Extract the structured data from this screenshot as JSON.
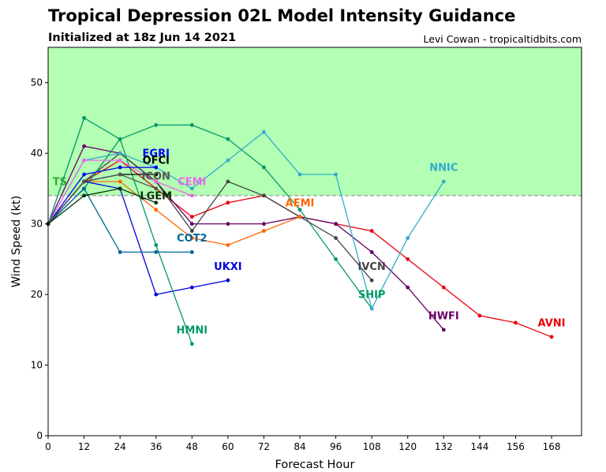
{
  "header": {
    "title": "Tropical Depression 02L Model Intensity Guidance",
    "subtitle": "Initialized at 18z Jun 14 2021",
    "credit": "Levi Cowan - tropicaltidbits.com"
  },
  "chart_data": {
    "type": "line",
    "title": "Tropical Depression 02L Model Intensity Guidance",
    "subtitle": "Initialized at 18z Jun 14 2021",
    "xlabel": "Forecast Hour",
    "ylabel": "Wind Speed (kt)",
    "xlim": [
      0,
      178
    ],
    "ylim": [
      0,
      55
    ],
    "xticks": [
      0,
      12,
      24,
      36,
      48,
      60,
      72,
      84,
      96,
      108,
      120,
      132,
      144,
      156,
      168
    ],
    "yticks": [
      0,
      10,
      20,
      30,
      40,
      50
    ],
    "grid": false,
    "legend": "none",
    "ts_region": {
      "label": "TS",
      "from": 34,
      "to": 55,
      "color": "#b3ffb3",
      "label_color": "#33aa33"
    },
    "threshold_line": 34,
    "series": [
      {
        "name": "AVNI",
        "color": "#e8000b",
        "x": [
          0,
          12,
          24,
          36,
          48,
          60,
          72,
          84,
          96,
          108,
          120,
          132,
          144,
          156,
          168
        ],
        "y": [
          30,
          36,
          39,
          35,
          31,
          33,
          34,
          31,
          30,
          29,
          25,
          21,
          17,
          16,
          14
        ],
        "label_x": 168,
        "label_y": 15.5
      },
      {
        "name": "HWFI",
        "color": "#660066",
        "x": [
          0,
          12,
          24,
          36,
          48,
          60,
          72,
          84,
          96,
          108,
          120,
          132
        ],
        "y": [
          30,
          41,
          40,
          36,
          30,
          30,
          30,
          31,
          30,
          26,
          21,
          15
        ],
        "label_x": 132,
        "label_y": 16.5
      },
      {
        "name": "SHIP",
        "color": "#009966",
        "x": [
          0,
          12,
          24,
          36,
          48,
          60,
          72,
          84,
          96,
          108
        ],
        "y": [
          30,
          45,
          42,
          44,
          44,
          42,
          38,
          32,
          25,
          18
        ],
        "label_x": 108,
        "label_y": 19.5
      },
      {
        "name": "IVCN",
        "color": "#444444",
        "x": [
          0,
          12,
          24,
          36,
          48,
          60,
          72,
          84,
          96,
          108
        ],
        "y": [
          30,
          36,
          40,
          36,
          29,
          36,
          34,
          31,
          28,
          22
        ],
        "label_x": 108,
        "label_y": 23.5
      },
      {
        "name": "NNIC",
        "color": "#33aacc",
        "x": [
          0,
          12,
          24,
          36,
          48,
          60,
          72,
          84,
          96,
          108,
          120,
          132
        ],
        "y": [
          30,
          39,
          40,
          38,
          35,
          39,
          43,
          37,
          37,
          18,
          28,
          36
        ],
        "label_x": 132,
        "label_y": 37.5
      },
      {
        "name": "AEMI",
        "color": "#ff6600",
        "x": [
          0,
          12,
          24,
          36,
          48,
          60,
          72,
          84
        ],
        "y": [
          30,
          36,
          36,
          32,
          28,
          27,
          29,
          31
        ],
        "label_x": 84,
        "label_y": 32.5
      },
      {
        "name": "UKXI",
        "color": "#0000dd",
        "x": [
          0,
          12,
          24,
          36,
          48,
          60
        ],
        "y": [
          30,
          36,
          35,
          20,
          21,
          22
        ],
        "label_x": 60,
        "label_y": 23.5
      },
      {
        "name": "HMNI",
        "color": "#009966",
        "x": [
          0,
          12,
          24,
          36,
          48
        ],
        "y": [
          30,
          35,
          42,
          27,
          13
        ],
        "label_x": 48,
        "label_y": 14.5
      },
      {
        "name": "COT2",
        "color": "#006699",
        "x": [
          0,
          12,
          24,
          36,
          48
        ],
        "y": [
          30,
          35,
          26,
          26,
          26
        ],
        "label_x": 48,
        "label_y": 27.5
      },
      {
        "name": "CEMI",
        "color": "#ee66ee",
        "x": [
          0,
          12,
          24,
          36,
          48
        ],
        "y": [
          30,
          39,
          39,
          36,
          34
        ],
        "label_x": 48,
        "label_y": 35.5
      },
      {
        "name": "EGRI",
        "color": "#0000ee",
        "x": [
          0,
          12,
          24,
          36
        ],
        "y": [
          30,
          37,
          38,
          38
        ],
        "label_x": 36,
        "label_y": 39.5
      },
      {
        "name": "OFCI",
        "color": "#000000",
        "x": [
          0,
          12,
          24,
          36
        ],
        "y": [
          30,
          36,
          37,
          37
        ],
        "label_x": 36,
        "label_y": 38.5
      },
      {
        "name": "ICON",
        "color": "#555555",
        "x": [
          0,
          12,
          24,
          36
        ],
        "y": [
          30,
          36,
          37,
          35
        ],
        "label_x": 36,
        "label_y": 36.3
      },
      {
        "name": "LGEM",
        "color": "#003300",
        "x": [
          0,
          12,
          24,
          36
        ],
        "y": [
          30,
          34,
          35,
          33
        ],
        "label_x": 36,
        "label_y": 33.5
      }
    ]
  }
}
